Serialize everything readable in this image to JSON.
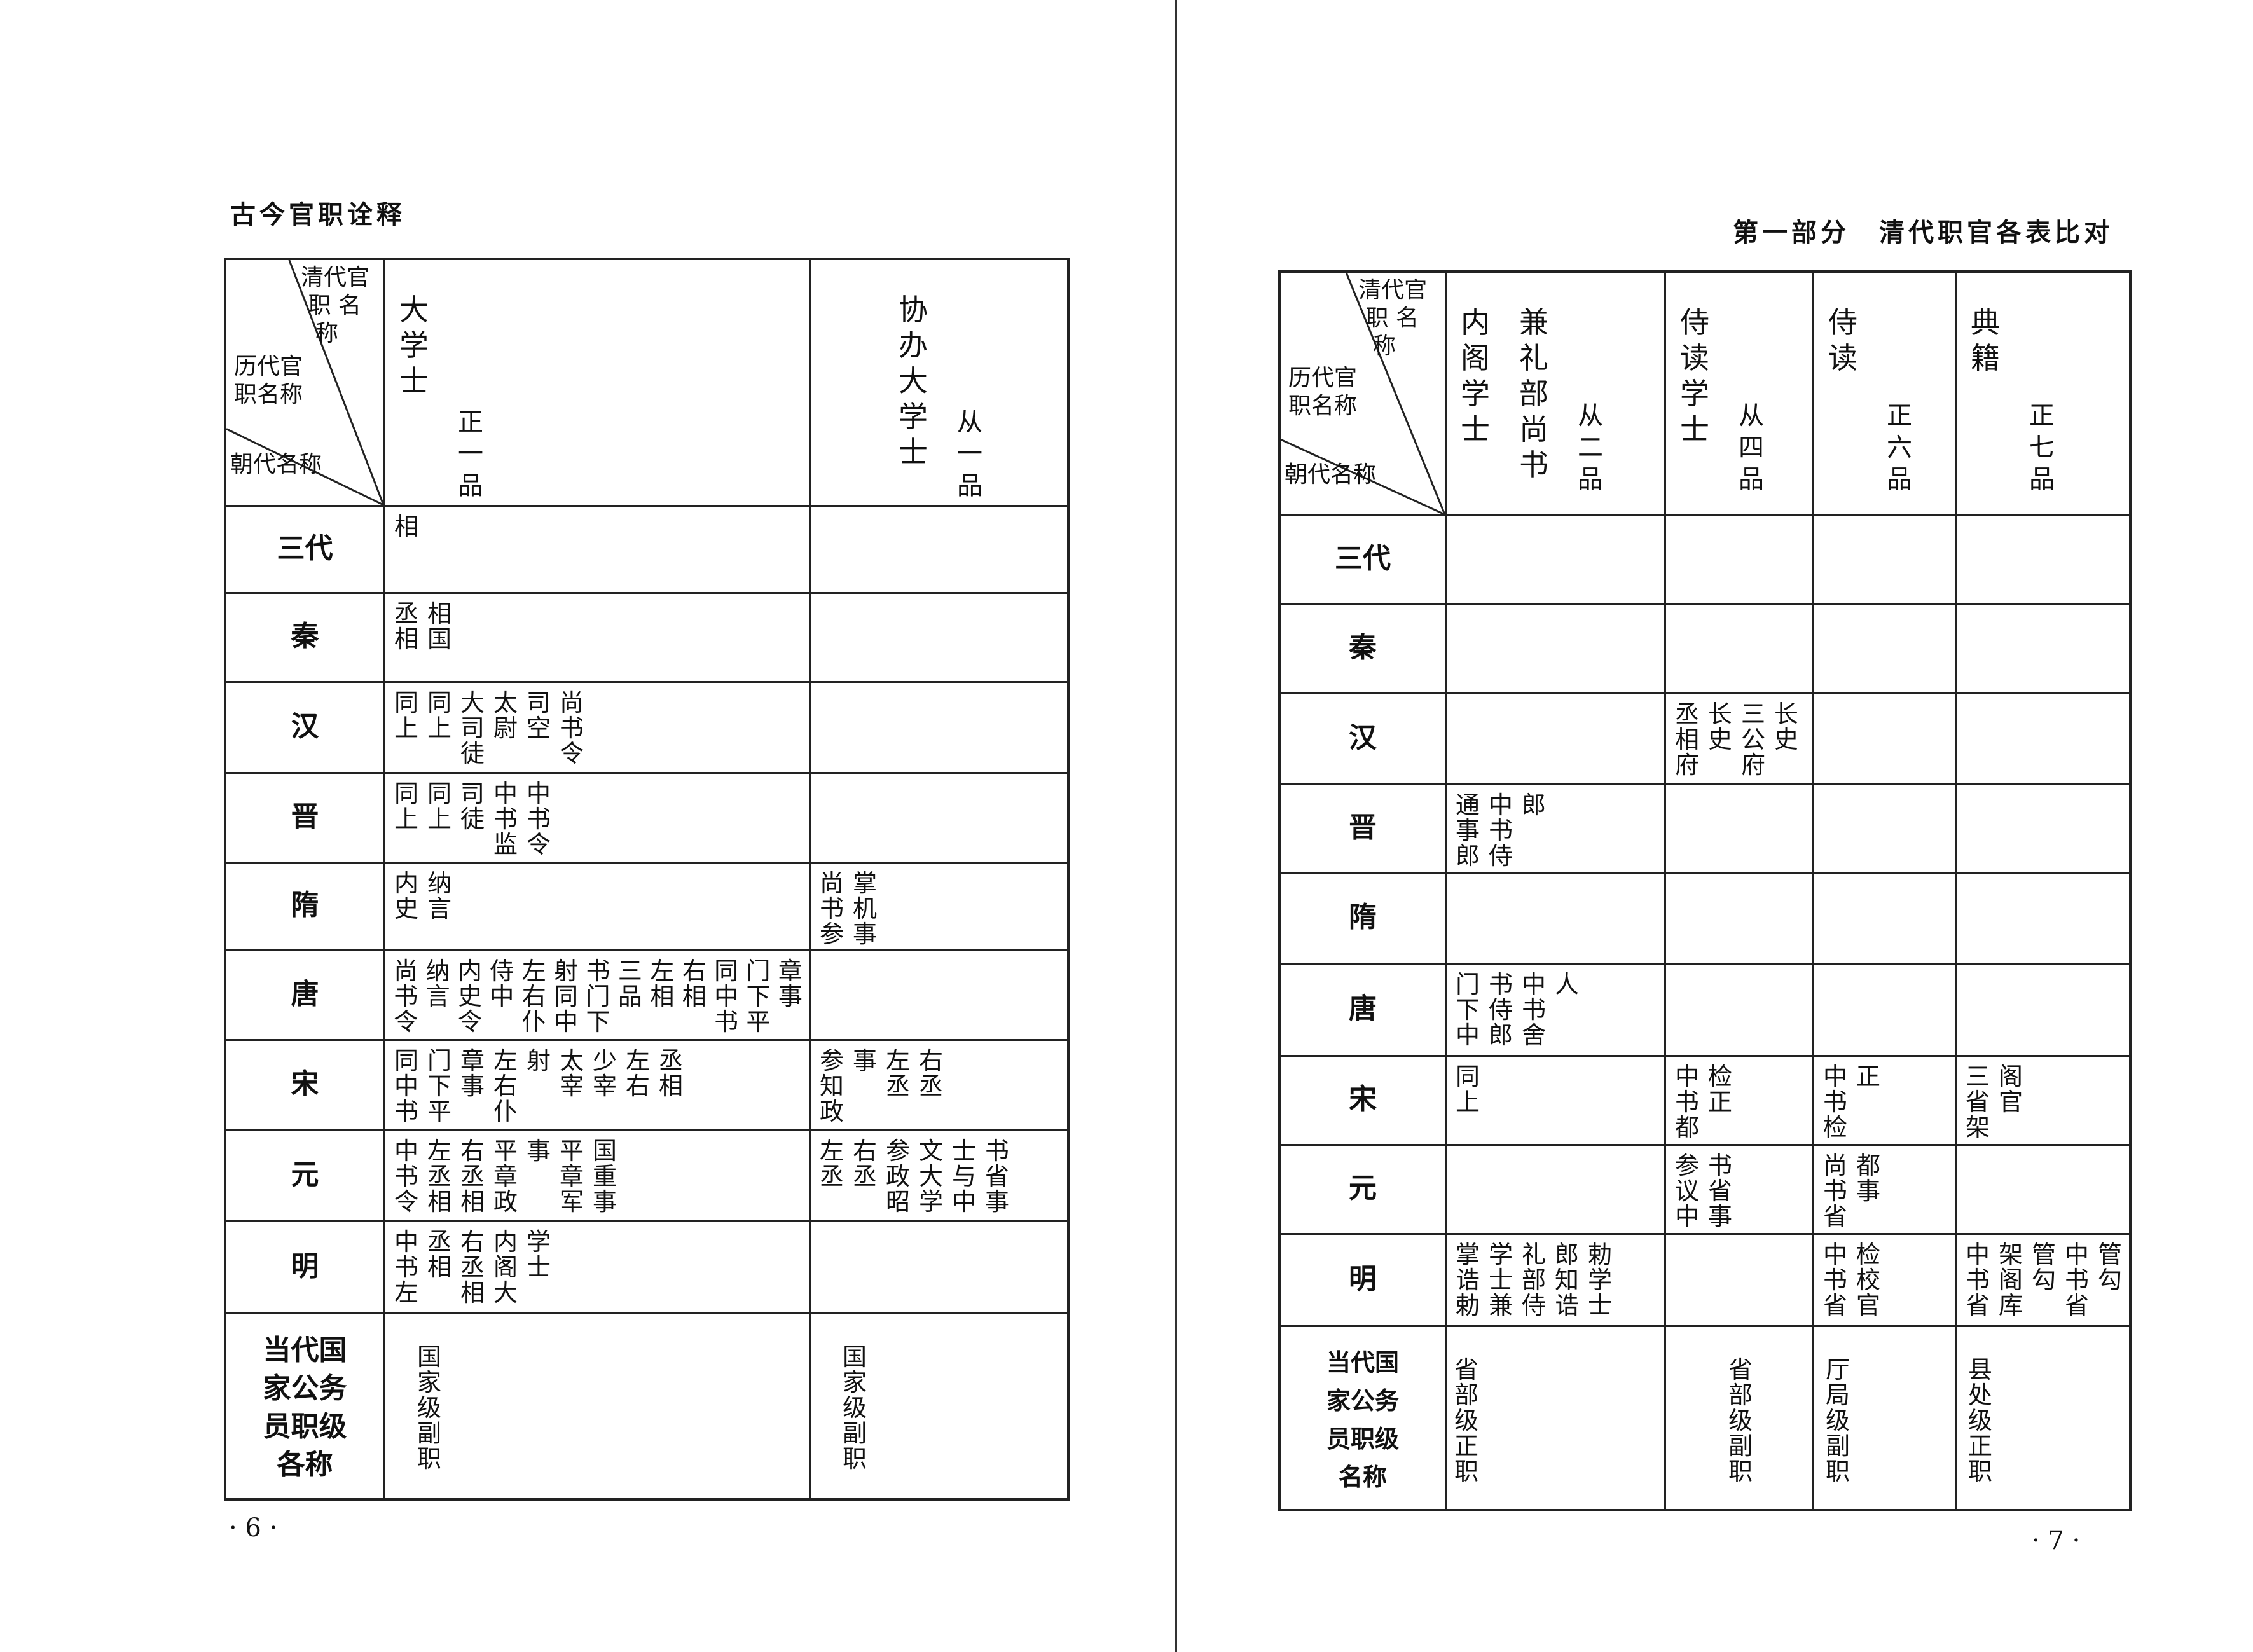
{
  "left_page": {
    "running_title": "古今官职诠释",
    "page_number": "· 6 ·",
    "corner": {
      "qing": "清代官\n 职 名\n  称",
      "lidai": "历代官\n职名称",
      "chaodai": "朝代名称"
    },
    "columns": [
      {
        "title": "大学士",
        "rank": "正一品"
      },
      {
        "title": "协办大学士",
        "rank": "从一品"
      }
    ],
    "rows": [
      {
        "dynasty": "三代",
        "cells": [
          [
            "相"
          ],
          []
        ]
      },
      {
        "dynasty": "秦",
        "cells": [
          [
            "丞相",
            "相国"
          ],
          []
        ]
      },
      {
        "dynasty": "汉",
        "cells": [
          [
            "同上",
            "同上",
            "大司徒",
            "太尉",
            "司空",
            "尚书令"
          ],
          []
        ]
      },
      {
        "dynasty": "晋",
        "cells": [
          [
            "同上",
            "同上",
            "司徒",
            "中书监",
            "中书令"
          ],
          []
        ]
      },
      {
        "dynasty": "隋",
        "cells": [
          [
            "内史",
            "纳言"
          ],
          [
            "尚书参",
            "掌机事"
          ]
        ]
      },
      {
        "dynasty": "唐",
        "cells": [
          [
            "尚书令",
            "纳言",
            "内史令",
            "侍中",
            "左右仆",
            "射同中",
            "书门下",
            "三品",
            "左相",
            "右相",
            "同中书",
            "门下平",
            "章事"
          ],
          []
        ]
      },
      {
        "dynasty": "宋",
        "cells": [
          [
            "同中书",
            "门下平",
            "章事",
            "左右仆",
            "射",
            "太宰",
            "少宰",
            "左右",
            "丞相"
          ],
          [
            "参知政",
            "事",
            "左丞",
            "右丞"
          ]
        ]
      },
      {
        "dynasty": "元",
        "cells": [
          [
            "中书令",
            "左丞相",
            "右丞相",
            "平章政",
            "事",
            "平章军",
            "国重事"
          ],
          [
            "左丞",
            "右丞",
            "参政昭",
            "文大学",
            "士与中",
            "书省事"
          ]
        ]
      },
      {
        "dynasty": "明",
        "cells": [
          [
            "中书左",
            "丞相",
            "右丞相",
            "内阁大",
            "学士"
          ],
          []
        ]
      },
      {
        "dynasty": "当代国\n家公务\n员职级\n各称",
        "cells": [
          [
            "国家级副职"
          ],
          [
            "国家级副职"
          ]
        ]
      }
    ]
  },
  "right_page": {
    "running_title": "第一部分　清代职官各表比对",
    "page_number": "· 7 ·",
    "corner": {
      "qing": "清代官\n 职 名\n  称",
      "lidai": "历代官\n职名称",
      "chaodai": "朝代名称"
    },
    "columns": [
      {
        "title": "内阁学士",
        "title2": "兼礼部尚书",
        "rank": "从二品"
      },
      {
        "title": "侍读学士",
        "rank": "从四品"
      },
      {
        "title": "侍读",
        "rank": "正六品"
      },
      {
        "title": "典籍",
        "rank": "正七品"
      }
    ],
    "rows": [
      {
        "dynasty": "三代",
        "cells": [
          [],
          [],
          [],
          []
        ]
      },
      {
        "dynasty": "秦",
        "cells": [
          [],
          [],
          [],
          []
        ]
      },
      {
        "dynasty": "汉",
        "cells": [
          [],
          [
            "丞相府",
            "长史",
            "三公府",
            "长史"
          ],
          [],
          []
        ]
      },
      {
        "dynasty": "晋",
        "cells": [
          [
            "通事郎",
            "中书侍",
            "郎"
          ],
          [],
          [],
          []
        ]
      },
      {
        "dynasty": "隋",
        "cells": [
          [],
          [],
          [],
          []
        ]
      },
      {
        "dynasty": "唐",
        "cells": [
          [
            "门下中",
            "书侍郎",
            "中书舍",
            "人"
          ],
          [],
          [],
          []
        ]
      },
      {
        "dynasty": "宋",
        "cells": [
          [
            "同上"
          ],
          [
            "中书都",
            "检正"
          ],
          [
            "中书检",
            "正"
          ],
          [
            "三省架",
            "阁官"
          ]
        ]
      },
      {
        "dynasty": "元",
        "cells": [
          [],
          [
            "参议中",
            "书省事"
          ],
          [
            "尚书省",
            "都事"
          ],
          []
        ]
      },
      {
        "dynasty": "明",
        "cells": [
          [
            "掌诰勅",
            "学士兼",
            "礼部侍",
            "郎知诰",
            "勅学士"
          ],
          [],
          [
            "中书省",
            "检校官"
          ],
          [
            "中书省",
            "架阁库",
            "管勾",
            "中书省",
            "管勾"
          ]
        ]
      },
      {
        "dynasty": "当代国\n家公务\n员职级\n名称",
        "cells": [
          [
            "省部级正职"
          ],
          [
            "省部级副职"
          ],
          [
            "厅局级副职"
          ],
          [
            "县处级正职"
          ]
        ]
      }
    ]
  }
}
